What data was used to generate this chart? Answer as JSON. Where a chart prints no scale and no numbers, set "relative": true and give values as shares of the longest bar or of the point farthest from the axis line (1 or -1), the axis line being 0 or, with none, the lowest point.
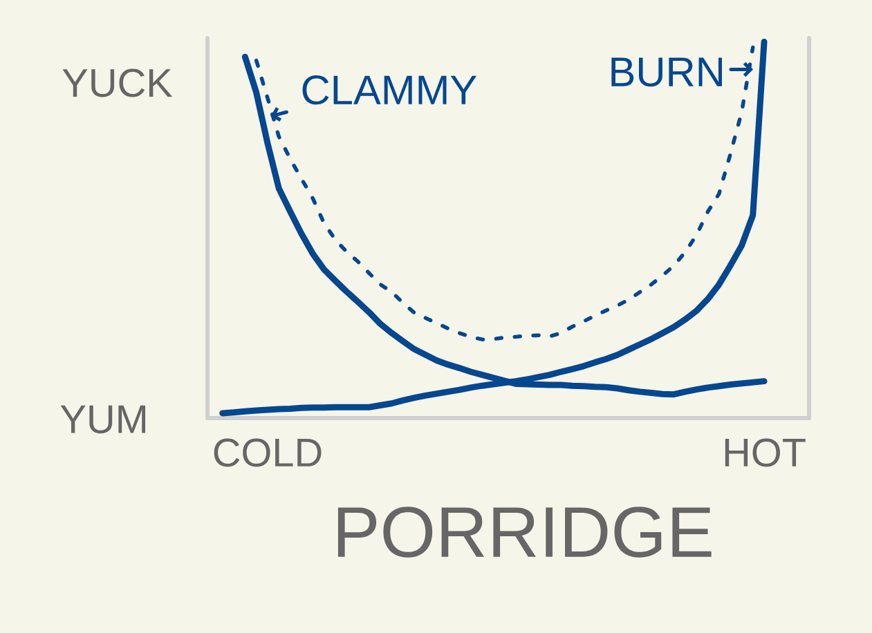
{
  "chart_data": {
    "type": "line",
    "relative": true,
    "xlabel": "PORRIDGE",
    "categories": [
      null,
      null,
      null,
      null,
      "COLD",
      null,
      null,
      null,
      null,
      null,
      null,
      null,
      null,
      null,
      null,
      null,
      null,
      null,
      null,
      null,
      null,
      null,
      null,
      null,
      null,
      null,
      null,
      null,
      null,
      null,
      null,
      null,
      null,
      null,
      null,
      null,
      null,
      null,
      null,
      null,
      null,
      null,
      null,
      null,
      null,
      null,
      null,
      null,
      "HOT",
      null
    ],
    "series": [
      {
        "name": "CLAMMY",
        "color": "#06478f",
        "values": [
          null,
          null,
          0.96,
          0.865,
          0.73,
          0.61,
          0.549,
          0.49,
          0.437,
          0.395,
          0.365,
          0.336,
          0.309,
          0.281,
          0.25,
          0.226,
          0.204,
          0.183,
          0.168,
          0.153,
          0.142,
          0.133,
          0.123,
          0.115,
          0.107,
          0.099,
          0.091,
          0.09,
          0.089,
          0.088,
          0.088,
          0.086,
          0.085,
          0.083,
          0.082,
          0.079,
          0.074,
          0.07,
          0.067,
          0.064,
          0.063,
          0.07,
          0.076,
          0.081,
          0.085,
          0.089,
          0.092,
          0.095,
          0.098,
          null
        ]
      },
      {
        "name": "BURN",
        "color": "#06478f",
        "values": [
          0.013,
          0.015,
          0.018,
          0.02,
          0.022,
          0.024,
          0.025,
          0.027,
          0.028,
          0.028,
          0.029,
          0.029,
          0.029,
          0.029,
          0.034,
          0.039,
          0.047,
          0.054,
          0.06,
          0.065,
          0.07,
          0.075,
          0.081,
          0.086,
          0.09,
          0.094,
          0.098,
          0.103,
          0.109,
          0.115,
          0.123,
          0.13,
          0.138,
          0.148,
          0.157,
          0.168,
          0.182,
          0.196,
          0.21,
          0.226,
          0.242,
          0.262,
          0.285,
          0.316,
          0.355,
          0.405,
          0.458,
          0.539,
          1.0,
          null
        ]
      },
      {
        "color": "#06478f",
        "line_style": "dashed",
        "values": [
          null,
          null,
          null,
          0.95,
          0.85,
          0.748,
          0.689,
          0.636,
          0.584,
          0.518,
          0.474,
          0.442,
          0.416,
          0.385,
          0.355,
          0.335,
          0.306,
          0.28,
          0.266,
          0.252,
          0.238,
          0.226,
          0.216,
          0.209,
          0.21,
          0.214,
          0.216,
          0.219,
          0.22,
          0.217,
          0.226,
          0.243,
          0.257,
          0.272,
          0.286,
          0.299,
          0.315,
          0.335,
          0.355,
          0.379,
          0.405,
          0.441,
          0.486,
          0.548,
          0.596,
          0.701,
          0.812,
          0.985,
          null,
          null
        ]
      }
    ],
    "annotations": [
      "YUCK",
      "YUM"
    ]
  }
}
